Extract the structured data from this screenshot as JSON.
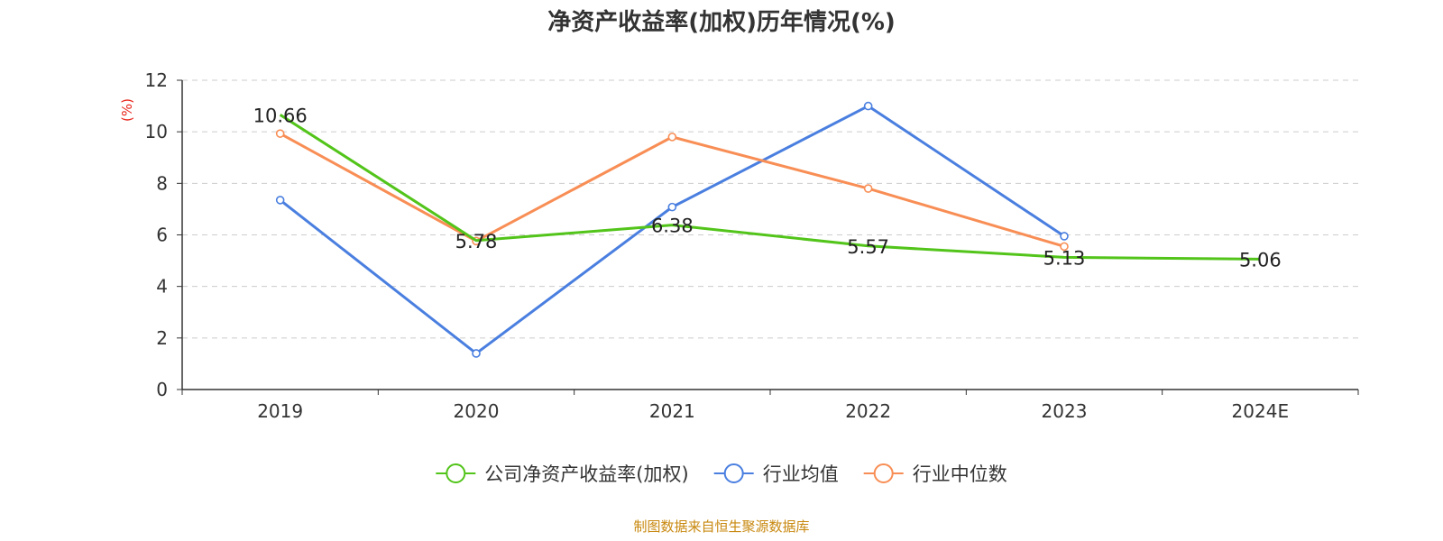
{
  "colors": {
    "company": "#52c41a",
    "industry_avg": "#4a7fe0",
    "industry_median": "#f88e55",
    "unit": "#e8251b",
    "source": "#c8880f",
    "axis": "#333333",
    "grid": "#cccccc"
  },
  "chart_data": {
    "type": "line",
    "title": "净资产收益率(加权)历年情况(%)",
    "ylabel": "(%)",
    "xlabel": "",
    "categories": [
      "2019",
      "2020",
      "2021",
      "2022",
      "2023",
      "2024E"
    ],
    "ylim": [
      0,
      12
    ],
    "yticks": [
      0,
      2,
      4,
      6,
      8,
      10,
      12
    ],
    "grid": true,
    "legend_position": "bottom-center",
    "series": [
      {
        "name": "公司净资产收益率(加权)",
        "color_key": "company",
        "values": [
          10.66,
          5.78,
          6.38,
          5.57,
          5.13,
          5.06
        ],
        "labels": [
          "10.66",
          "5.78",
          "6.38",
          "5.57",
          "5.13",
          "5.06"
        ],
        "show_markers": false
      },
      {
        "name": "行业均值",
        "color_key": "industry_avg",
        "values": [
          7.35,
          1.4,
          7.08,
          11.0,
          5.95,
          null
        ],
        "show_markers": true
      },
      {
        "name": "行业中位数",
        "color_key": "industry_median",
        "values": [
          9.93,
          5.76,
          9.8,
          7.8,
          5.55,
          null
        ],
        "show_markers": true
      }
    ]
  },
  "footer": {
    "source": "制图数据来自恒生聚源数据库"
  }
}
